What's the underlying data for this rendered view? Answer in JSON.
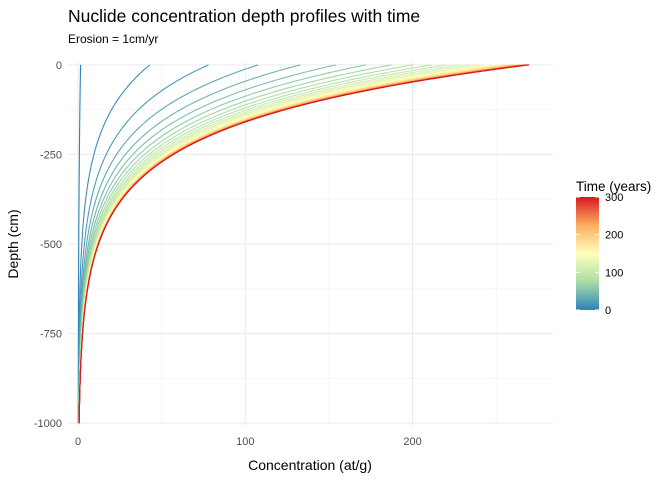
{
  "chart_data": {
    "type": "line",
    "title": "Nuclide concentration depth profiles with time",
    "subtitle": "Erosion = 1cm/yr",
    "xlabel": "Concentration (at/g)",
    "ylabel": "Depth (cm)",
    "xlim": [
      -6,
      284
    ],
    "ylim": [
      -1008,
      8
    ],
    "x_ticks": [
      0,
      100,
      200
    ],
    "x_tick_labels": [
      "0",
      "100",
      "200"
    ],
    "y_ticks": [
      0,
      -250,
      -500,
      -750,
      -1000
    ],
    "y_tick_labels": [
      "0",
      "-250",
      "-500",
      "-750",
      "-1000"
    ],
    "grid": true,
    "profile_model": {
      "surface_concentration_max": 270,
      "attenuation_length_cm": 160,
      "time_scale_years": 60,
      "time_min": 0,
      "time_max": 300,
      "curve_count": 31
    },
    "legend": {
      "title": "Time (years)",
      "position": "right",
      "ticks": [
        0,
        100,
        200,
        300
      ],
      "tick_labels": [
        "0",
        "100",
        "200",
        "300"
      ],
      "colors": [
        "#2b83ba",
        "#abdda4",
        "#ffffbf",
        "#fdae61",
        "#d7191c"
      ]
    }
  }
}
